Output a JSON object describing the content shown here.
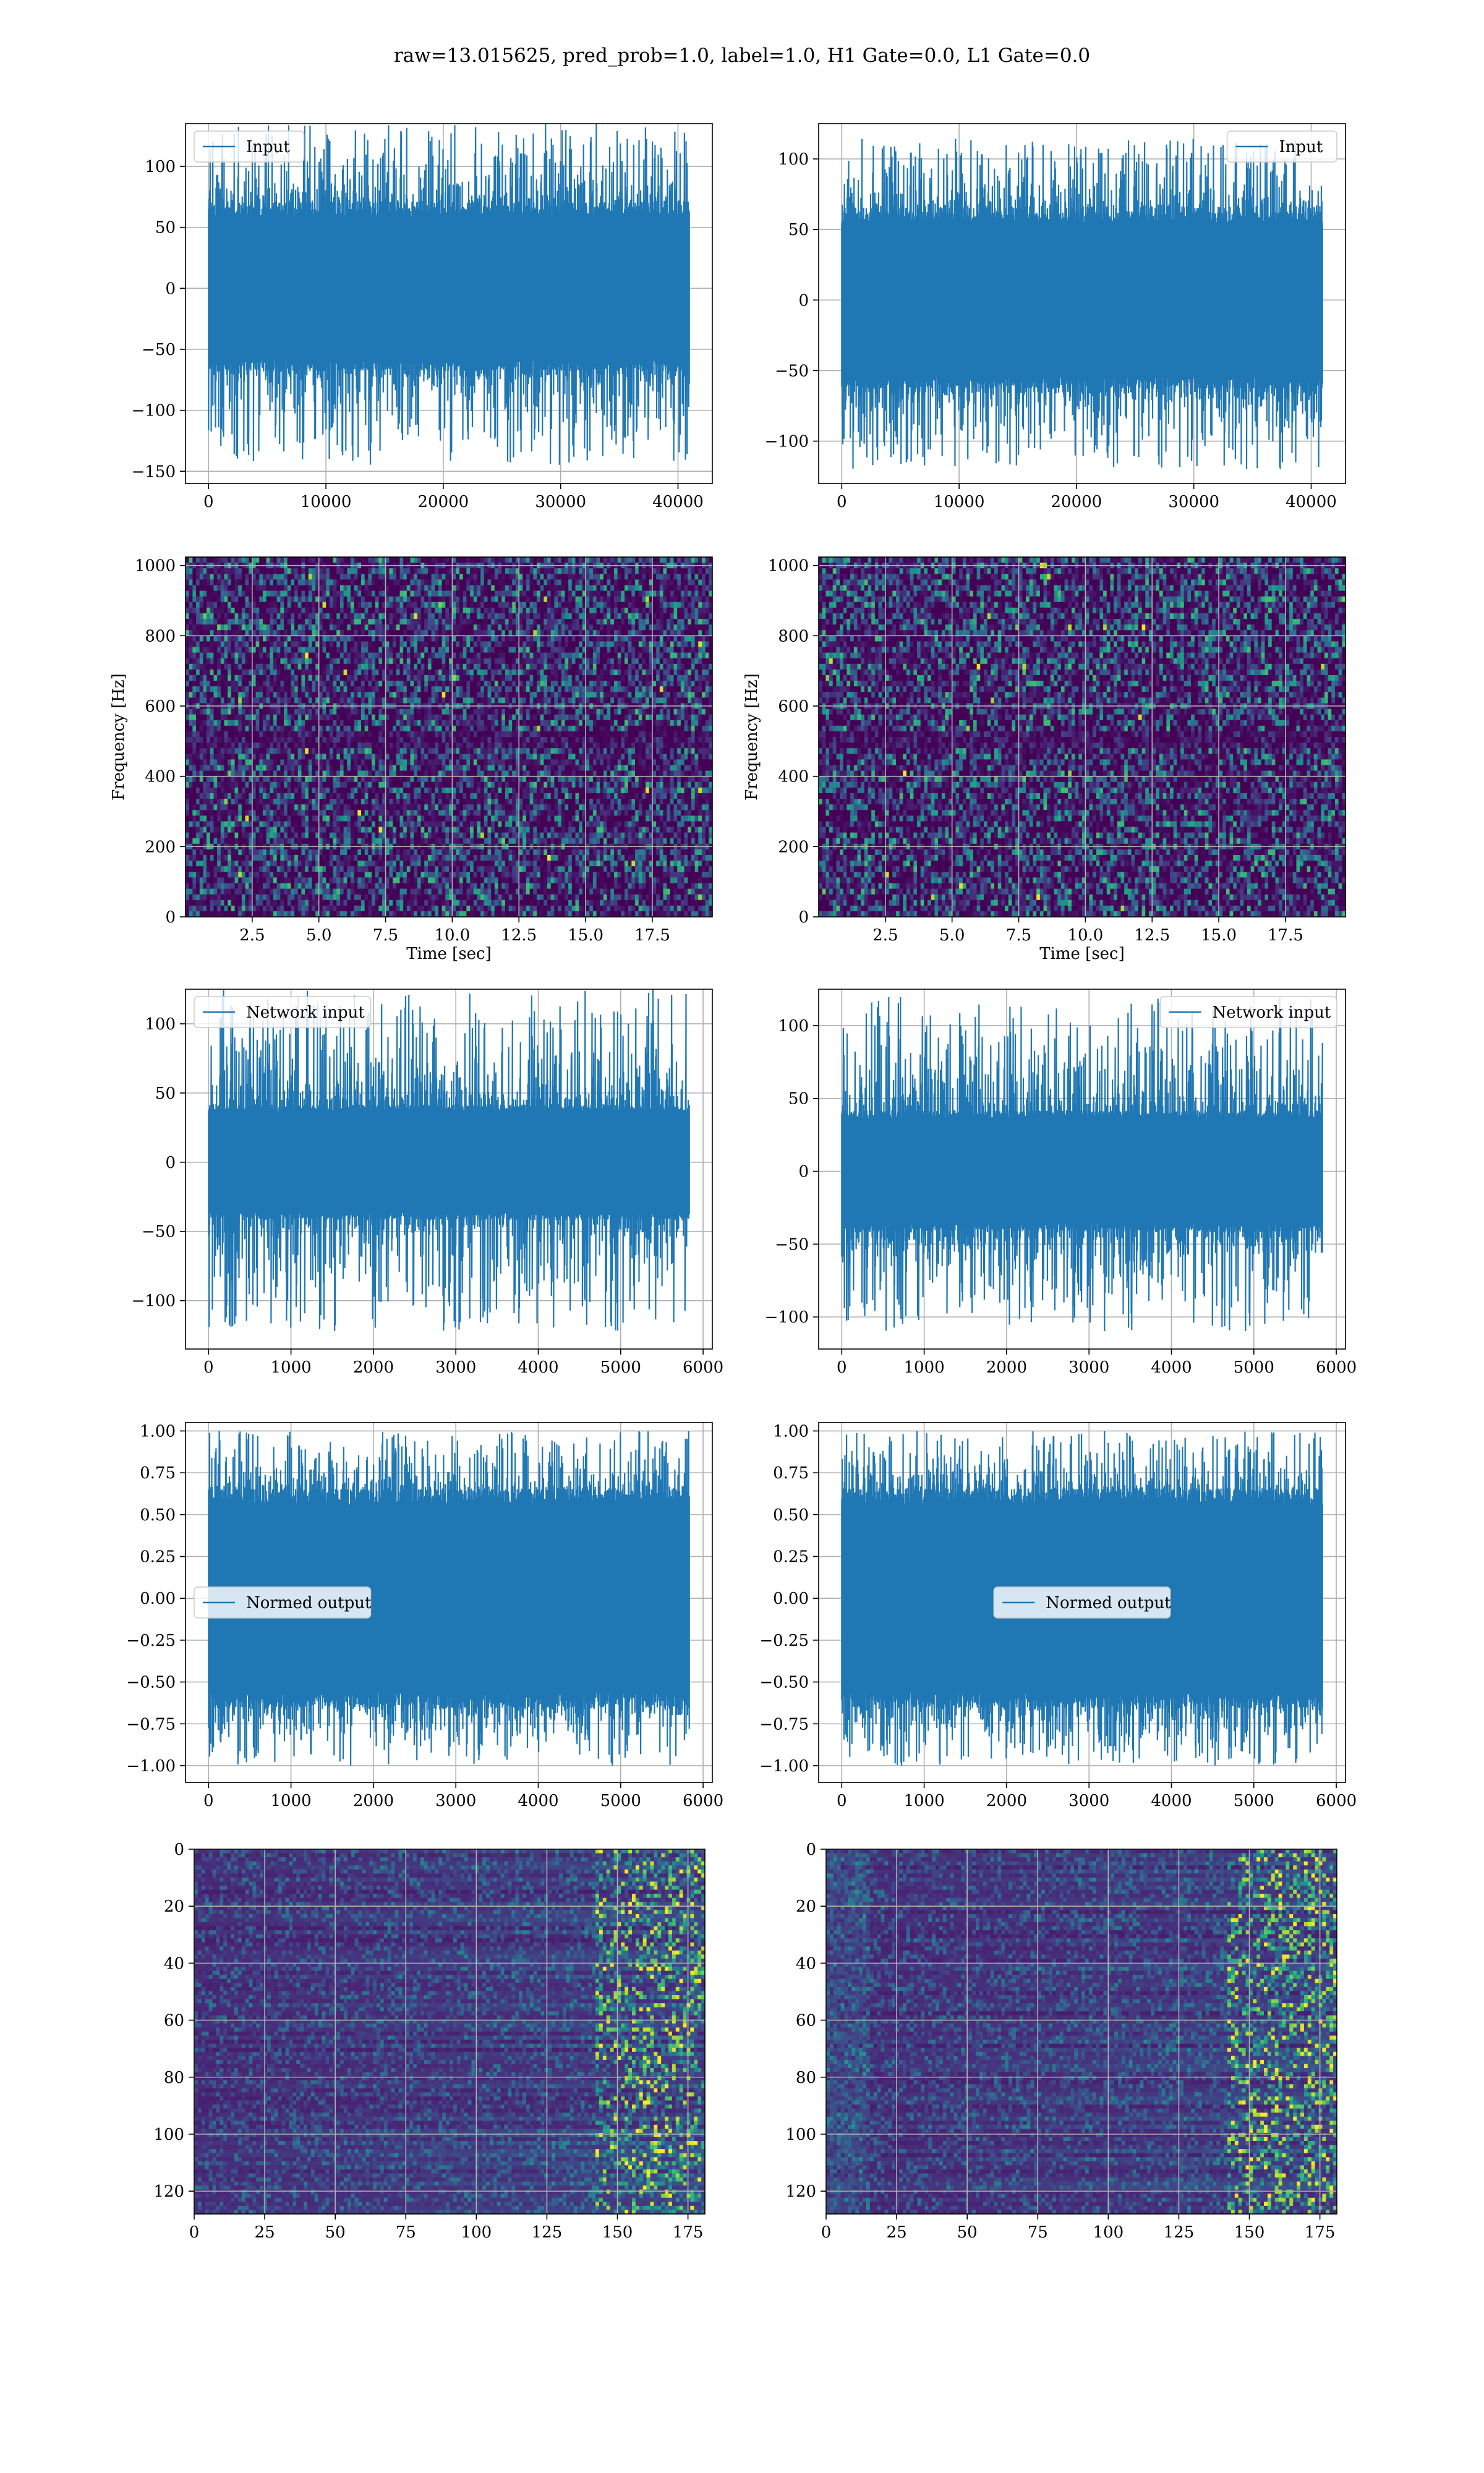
{
  "figure": {
    "suptitle": "raw=13.015625, pred_prob=1.0, label=1.0, H1 Gate=0.0, L1 Gate=0.0"
  },
  "colors": {
    "line": "#1f77b4",
    "grid": "#b0b0b0",
    "frame": "#000000"
  },
  "chart_data": [
    {
      "type": "line",
      "style": "dense-noise",
      "legend": "Input",
      "legend_loc": "upper-left",
      "x_range": [
        0,
        40960
      ],
      "ylim": [
        -160,
        135
      ],
      "x_max": 40960,
      "band": {
        "core": 65,
        "spike_min": 70,
        "spike_max": 135,
        "spike_neg_min": -70,
        "spike_neg_max": -145
      },
      "xticks": [
        0,
        10000,
        20000,
        30000,
        40000
      ],
      "yticks": [
        -150,
        -100,
        -50,
        0,
        50,
        100
      ],
      "xlabel": "",
      "ylabel": "",
      "grid": true
    },
    {
      "type": "line",
      "style": "dense-noise",
      "legend": "Input",
      "legend_loc": "upper-right",
      "x_range": [
        0,
        40960
      ],
      "ylim": [
        -130,
        125
      ],
      "x_max": 40960,
      "band": {
        "core": 60,
        "spike_min": 65,
        "spike_max": 115,
        "spike_neg_min": -65,
        "spike_neg_max": -120
      },
      "xticks": [
        0,
        10000,
        20000,
        30000,
        40000
      ],
      "yticks": [
        -100,
        -50,
        0,
        50,
        100
      ],
      "xlabel": "",
      "ylabel": "",
      "grid": true
    },
    {
      "type": "heatmap",
      "style": "spectrogram",
      "cmap": "viridis",
      "xlim": [
        0,
        19.75
      ],
      "ylim": [
        0,
        1024
      ],
      "xticks": [
        2.5,
        5.0,
        7.5,
        10.0,
        12.5,
        15.0,
        17.5
      ],
      "xtick_labels": [
        "2.5",
        "5.0",
        "7.5",
        "10.0",
        "12.5",
        "15.0",
        "17.5"
      ],
      "yticks": [
        0,
        200,
        400,
        600,
        800,
        1000
      ],
      "xlabel": "Time [sec]",
      "ylabel": "Frequency [Hz]",
      "grid": true
    },
    {
      "type": "heatmap",
      "style": "spectrogram",
      "cmap": "viridis",
      "xlim": [
        0,
        19.75
      ],
      "ylim": [
        0,
        1024
      ],
      "xticks": [
        2.5,
        5.0,
        7.5,
        10.0,
        12.5,
        15.0,
        17.5
      ],
      "xtick_labels": [
        "2.5",
        "5.0",
        "7.5",
        "10.0",
        "12.5",
        "15.0",
        "17.5"
      ],
      "yticks": [
        0,
        200,
        400,
        600,
        800,
        1000
      ],
      "xlabel": "Time [sec]",
      "ylabel": "Frequency [Hz]",
      "grid": true
    },
    {
      "type": "line",
      "style": "dense-noise",
      "legend": "Network input",
      "legend_loc": "upper-left",
      "x_range": [
        0,
        5832
      ],
      "ylim": [
        -135,
        125
      ],
      "x_max": 5832,
      "band": {
        "core": 40,
        "spike_min": 45,
        "spike_max": 125,
        "spike_neg_min": -45,
        "spike_neg_max": -122
      },
      "xticks": [
        0,
        1000,
        2000,
        3000,
        4000,
        5000,
        6000
      ],
      "yticks": [
        -100,
        -50,
        0,
        50,
        100
      ],
      "xlabel": "",
      "ylabel": "",
      "grid": true
    },
    {
      "type": "line",
      "style": "dense-noise",
      "legend": "Network input",
      "legend_loc": "upper-right",
      "x_range": [
        0,
        5832
      ],
      "ylim": [
        -122,
        125
      ],
      "x_max": 5832,
      "band": {
        "core": 40,
        "spike_min": 45,
        "spike_max": 120,
        "spike_neg_min": -45,
        "spike_neg_max": -110
      },
      "xticks": [
        0,
        1000,
        2000,
        3000,
        4000,
        5000,
        6000
      ],
      "yticks": [
        -100,
        -50,
        0,
        50,
        100
      ],
      "xlabel": "",
      "ylabel": "",
      "grid": true
    },
    {
      "type": "line",
      "style": "dense-noise",
      "legend": "Normed output",
      "legend_loc": "center-left",
      "x_range": [
        0,
        5832
      ],
      "ylim": [
        -1.1,
        1.05
      ],
      "x_max": 5832,
      "band": {
        "core": 0.62,
        "spike_min": 0.65,
        "spike_max": 1.0,
        "spike_neg_min": -0.65,
        "spike_neg_max": -1.0
      },
      "xticks": [
        0,
        1000,
        2000,
        3000,
        4000,
        5000,
        6000
      ],
      "yticks": [
        -1.0,
        -0.75,
        -0.5,
        -0.25,
        0.0,
        0.25,
        0.5,
        0.75,
        1.0
      ],
      "ytick_labels": [
        "−1.00",
        "−0.75",
        "−0.50",
        "−0.25",
        "0.00",
        "0.25",
        "0.50",
        "0.75",
        "1.00"
      ],
      "xlabel": "",
      "ylabel": "",
      "grid": true
    },
    {
      "type": "line",
      "style": "dense-noise",
      "legend": "Normed output",
      "legend_loc": "center",
      "x_range": [
        0,
        5832
      ],
      "ylim": [
        -1.1,
        1.05
      ],
      "x_max": 5832,
      "band": {
        "core": 0.62,
        "spike_min": 0.65,
        "spike_max": 1.0,
        "spike_neg_min": -0.65,
        "spike_neg_max": -1.0
      },
      "xticks": [
        0,
        1000,
        2000,
        3000,
        4000,
        5000,
        6000
      ],
      "yticks": [
        -1.0,
        -0.75,
        -0.5,
        -0.25,
        0.0,
        0.25,
        0.5,
        0.75,
        1.0
      ],
      "ytick_labels": [
        "−1.00",
        "−0.75",
        "−0.50",
        "−0.25",
        "0.00",
        "0.25",
        "0.50",
        "0.75",
        "1.00"
      ],
      "xlabel": "",
      "ylabel": "",
      "grid": true
    },
    {
      "type": "heatmap",
      "style": "feature-map",
      "cmap": "viridis",
      "xlim": [
        0,
        181
      ],
      "ylim_inverted": [
        128,
        0
      ],
      "xticks": [
        0,
        25,
        50,
        75,
        100,
        125,
        150,
        175
      ],
      "yticks": [
        0,
        20,
        40,
        60,
        80,
        100,
        120
      ],
      "xlabel": "",
      "ylabel": "",
      "grid": true
    },
    {
      "type": "heatmap",
      "style": "feature-map",
      "cmap": "viridis",
      "xlim": [
        0,
        181
      ],
      "ylim_inverted": [
        128,
        0
      ],
      "xticks": [
        0,
        25,
        50,
        75,
        100,
        125,
        150,
        175
      ],
      "yticks": [
        0,
        20,
        40,
        60,
        80,
        100,
        120
      ],
      "xlabel": "",
      "ylabel": "",
      "grid": true
    }
  ]
}
